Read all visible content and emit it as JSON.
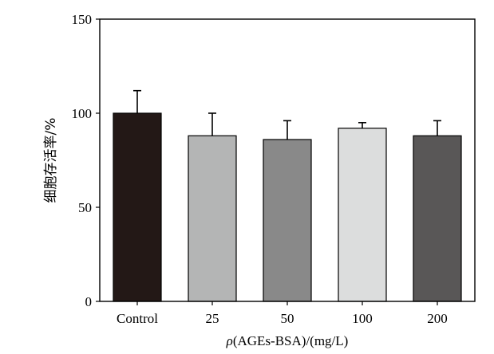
{
  "chart_data": {
    "type": "bar",
    "categories": [
      "Control",
      "25",
      "50",
      "100",
      "200"
    ],
    "values": [
      100,
      88,
      86,
      92,
      88
    ],
    "errors": [
      12,
      12,
      10,
      3,
      8
    ],
    "colors": [
      "#231816",
      "#b4b5b5",
      "#898989",
      "#dcdddd",
      "#595757"
    ],
    "xlabel_symbol": "ρ",
    "xlabel_rest": "(AGEs-BSA)/(mg/L)",
    "ylabel": "细胞存活率/%",
    "ylim": [
      0,
      150
    ],
    "yticks": [
      0,
      50,
      100,
      150
    ],
    "grid": false
  }
}
